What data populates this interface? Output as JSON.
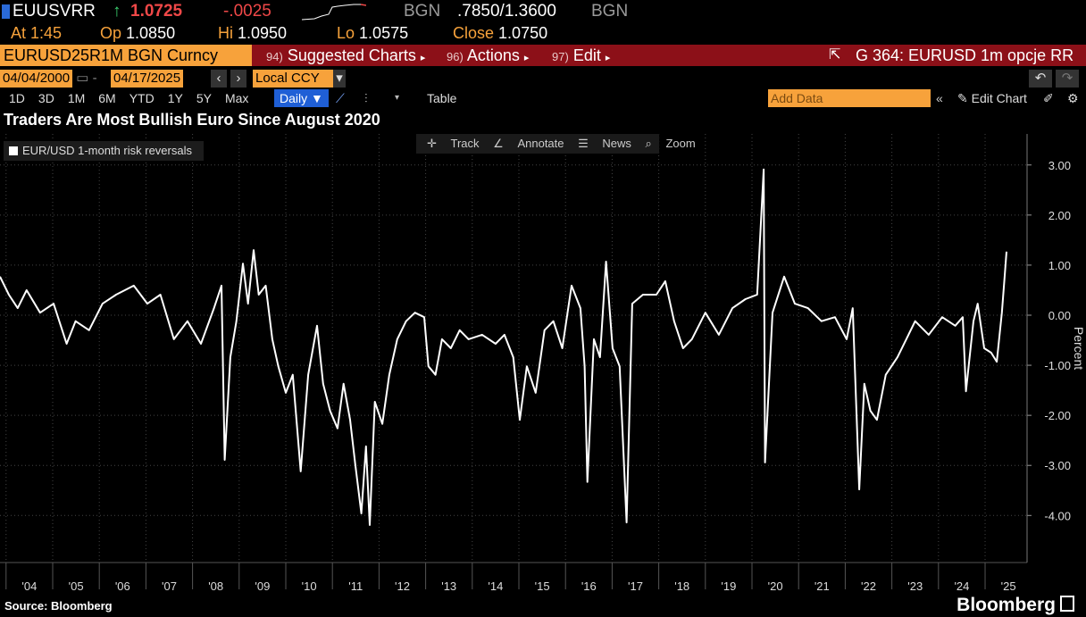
{
  "terminal": {
    "ticker": "EUUSVRR",
    "last": "1.0725",
    "change": "-.0025",
    "source_left": "BGN",
    "range": ".7850/1.3600",
    "source_right": "BGN",
    "quote": [
      {
        "label": "At",
        "value": "1:45"
      },
      {
        "label": "Op",
        "value": "1.0850"
      },
      {
        "label": "Hi",
        "value": "1.0950"
      },
      {
        "label": "Lo",
        "value": "1.0575"
      },
      {
        "label": "Close",
        "value": "1.0750"
      }
    ],
    "security": "EURUSD25R1M BGN Curncy",
    "menu": [
      {
        "key": "94)",
        "label": "Suggested Charts"
      },
      {
        "key": "96)",
        "label": "Actions"
      },
      {
        "key": "97)",
        "label": "Edit"
      }
    ],
    "page_title": "G 364: EURUSD 1m opcje RR",
    "start_date": "04/04/2000",
    "end_date": "04/17/2025",
    "currency": "Local CCY",
    "periods": [
      "1D",
      "3D",
      "1M",
      "6M",
      "YTD",
      "1Y",
      "5Y",
      "Max"
    ],
    "frequency": "Daily",
    "table": "Table",
    "add_data": "Add Data",
    "edit_chart": "Edit Chart",
    "tools": [
      "Track",
      "Annotate",
      "News",
      "Zoom"
    ]
  },
  "chart_data": {
    "type": "line",
    "title": "Traders Are Most Bullish Euro Since August 2020",
    "y_label": "Percent",
    "source": "Source: Bloomberg",
    "logo": "Bloomberg",
    "x": [
      2003.87,
      2004.06,
      2004.25,
      2004.44,
      2004.73,
      2005.02,
      2005.3,
      2005.49,
      2005.78,
      2006.07,
      2006.36,
      2006.74,
      2007.03,
      2007.31,
      2007.6,
      2007.89,
      2008.18,
      2008.46,
      2008.62,
      2008.69,
      2008.81,
      2008.94,
      2009.08,
      2009.19,
      2009.31,
      2009.42,
      2009.57,
      2009.71,
      2009.84,
      2010.0,
      2010.15,
      2010.32,
      2010.48,
      2010.67,
      2010.8,
      2010.95,
      2011.11,
      2011.24,
      2011.38,
      2011.49,
      2011.62,
      2011.72,
      2011.8,
      2011.91,
      2012.07,
      2012.22,
      2012.39,
      2012.58,
      2012.77,
      2012.97,
      2013.06,
      2013.21,
      2013.35,
      2013.54,
      2013.73,
      2013.92,
      2014.21,
      2014.5,
      2014.69,
      2014.88,
      2015.02,
      2015.17,
      2015.36,
      2015.55,
      2015.74,
      2015.93,
      2016.13,
      2016.32,
      2016.41,
      2016.47,
      2016.61,
      2016.74,
      2016.87,
      2017.01,
      2017.16,
      2017.31,
      2017.43,
      2017.66,
      2017.95,
      2018.14,
      2018.33,
      2018.52,
      2018.71,
      2019.0,
      2019.29,
      2019.58,
      2019.86,
      2020.11,
      2020.25,
      2020.28,
      2020.44,
      2020.69,
      2020.92,
      2021.2,
      2021.49,
      2021.78,
      2022.03,
      2022.16,
      2022.3,
      2022.41,
      2022.54,
      2022.68,
      2022.87,
      2023.12,
      2023.31,
      2023.5,
      2023.79,
      2024.08,
      2024.36,
      2024.52,
      2024.59,
      2024.75,
      2024.84,
      2024.98,
      2025.13,
      2025.25,
      2025.36,
      2025.42,
      2025.46
    ],
    "series": [
      {
        "name": "EUR/USD 1-month risk reversals",
        "color": "#ffffff",
        "values": [
          0.77,
          0.41,
          0.14,
          0.5,
          0.05,
          0.23,
          -0.57,
          -0.12,
          -0.3,
          0.23,
          0.41,
          0.59,
          0.23,
          0.41,
          -0.48,
          -0.12,
          -0.57,
          0.14,
          0.59,
          -2.89,
          -0.84,
          -0.12,
          1.03,
          0.23,
          1.3,
          0.41,
          0.59,
          -0.48,
          -1.02,
          -1.55,
          -1.19,
          -3.12,
          -1.19,
          -0.21,
          -1.37,
          -1.91,
          -2.26,
          -1.37,
          -2.09,
          -2.98,
          -3.96,
          -2.62,
          -4.19,
          -1.73,
          -2.17,
          -1.19,
          -0.48,
          -0.12,
          0.05,
          -0.04,
          -1.02,
          -1.19,
          -0.48,
          -0.66,
          -0.3,
          -0.48,
          -0.39,
          -0.57,
          -0.39,
          -0.84,
          -2.09,
          -1.02,
          -1.55,
          -0.3,
          -0.12,
          -0.66,
          0.59,
          0.14,
          -1.02,
          -3.33,
          -0.48,
          -0.84,
          1.07,
          -0.66,
          -1.02,
          -4.14,
          0.23,
          0.41,
          0.41,
          0.68,
          -0.12,
          -0.66,
          -0.48,
          0.05,
          -0.39,
          0.14,
          0.32,
          0.41,
          2.91,
          -2.94,
          0.05,
          0.77,
          0.23,
          0.14,
          -0.12,
          -0.04,
          -0.48,
          0.14,
          -3.48,
          -1.37,
          -1.91,
          -2.09,
          -1.19,
          -0.84,
          -0.48,
          -0.12,
          -0.39,
          -0.04,
          -0.21,
          -0.04,
          -1.52,
          -0.12,
          0.23,
          -0.66,
          -0.75,
          -0.93,
          0.05,
          0.77,
          1.27
        ]
      }
    ],
    "xlim": [
      2003.87,
      2025.9
    ],
    "xticks": [
      {
        "value": 2004.5,
        "label": "'04"
      },
      {
        "value": 2005.5,
        "label": "'05"
      },
      {
        "value": 2006.5,
        "label": "'06"
      },
      {
        "value": 2007.5,
        "label": "'07"
      },
      {
        "value": 2008.5,
        "label": "'08"
      },
      {
        "value": 2009.5,
        "label": "'09"
      },
      {
        "value": 2010.5,
        "label": "'10"
      },
      {
        "value": 2011.5,
        "label": "'11"
      },
      {
        "value": 2012.5,
        "label": "'12"
      },
      {
        "value": 2013.5,
        "label": "'13"
      },
      {
        "value": 2014.5,
        "label": "'14"
      },
      {
        "value": 2015.5,
        "label": "'15"
      },
      {
        "value": 2016.5,
        "label": "'16"
      },
      {
        "value": 2017.5,
        "label": "'17"
      },
      {
        "value": 2018.5,
        "label": "'18"
      },
      {
        "value": 2019.5,
        "label": "'19"
      },
      {
        "value": 2020.5,
        "label": "'20"
      },
      {
        "value": 2021.5,
        "label": "'21"
      },
      {
        "value": 2022.5,
        "label": "'22"
      },
      {
        "value": 2023.5,
        "label": "'23"
      },
      {
        "value": 2024.5,
        "label": "'24"
      },
      {
        "value": 2025.5,
        "label": "'25"
      }
    ],
    "ylim": [
      -4.94,
      3.62
    ],
    "yticks": [
      {
        "value": 3,
        "label": "3.00"
      },
      {
        "value": 2,
        "label": "2.00"
      },
      {
        "value": 1,
        "label": "1.00"
      },
      {
        "value": 0,
        "label": "0.00"
      },
      {
        "value": -1,
        "label": "-1.00"
      },
      {
        "value": -2,
        "label": "-2.00"
      },
      {
        "value": -3,
        "label": "-3.00"
      },
      {
        "value": -4,
        "label": "-4.00"
      }
    ],
    "grid": true
  }
}
